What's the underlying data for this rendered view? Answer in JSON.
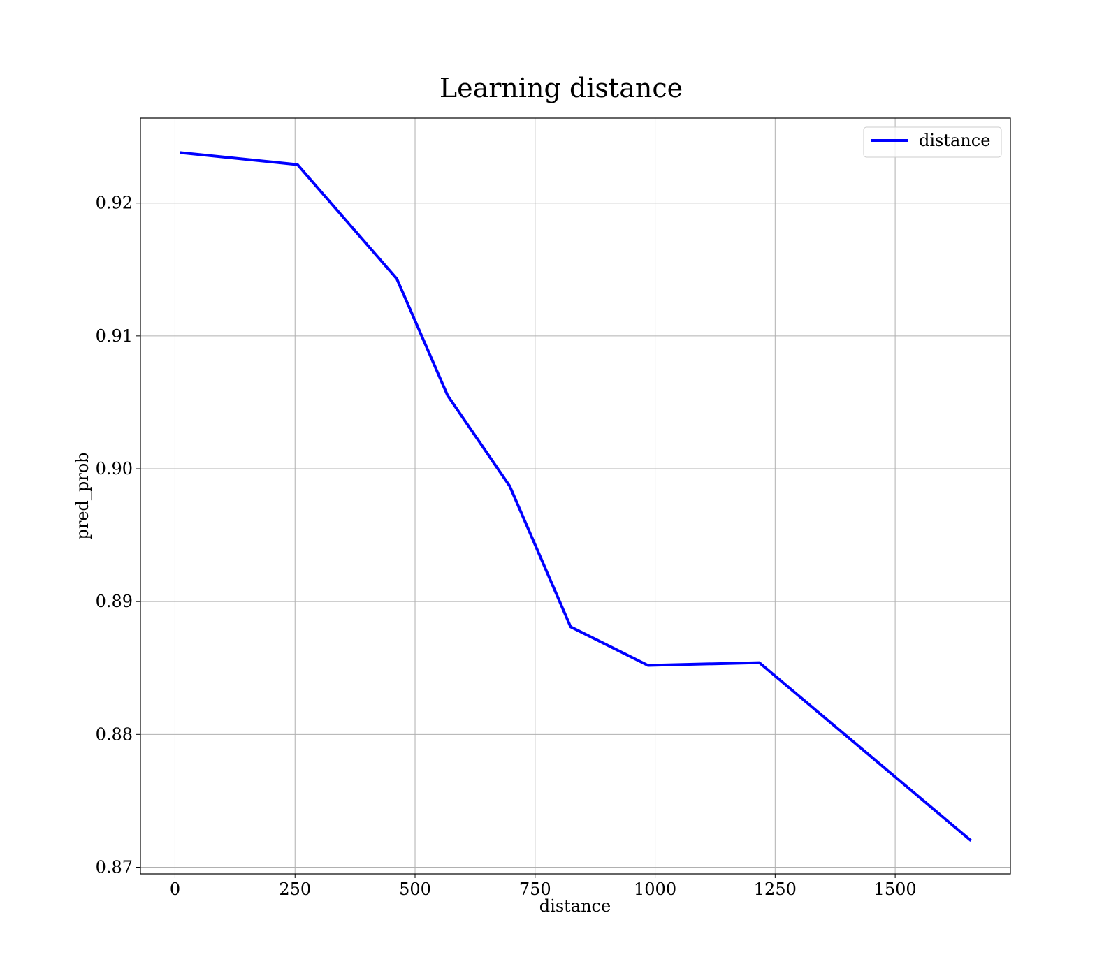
{
  "chart_data": {
    "type": "line",
    "title": "Learning distance",
    "xlabel": "distance",
    "ylabel": "pred_prob",
    "xlim": [
      -72,
      1740
    ],
    "ylim": [
      0.8695,
      0.9264
    ],
    "xticks": [
      0,
      250,
      500,
      750,
      1000,
      1250,
      1500
    ],
    "xtick_labels": [
      "0",
      "250",
      "500",
      "750",
      "1000",
      "1250",
      "1500"
    ],
    "yticks": [
      0.87,
      0.88,
      0.89,
      0.9,
      0.91,
      0.92
    ],
    "ytick_labels": [
      "0.87",
      "0.88",
      "0.89",
      "0.90",
      "0.91",
      "0.92"
    ],
    "grid": true,
    "legend": {
      "position": "upper right",
      "entries": [
        "distance"
      ]
    },
    "series": [
      {
        "name": "distance",
        "color": "#0000ff",
        "x": [
          10,
          255,
          462,
          568,
          697,
          824,
          985,
          1217,
          1658
        ],
        "y": [
          0.9238,
          0.9229,
          0.9143,
          0.9055,
          0.8987,
          0.8881,
          0.8852,
          0.8854,
          0.872
        ]
      }
    ]
  }
}
